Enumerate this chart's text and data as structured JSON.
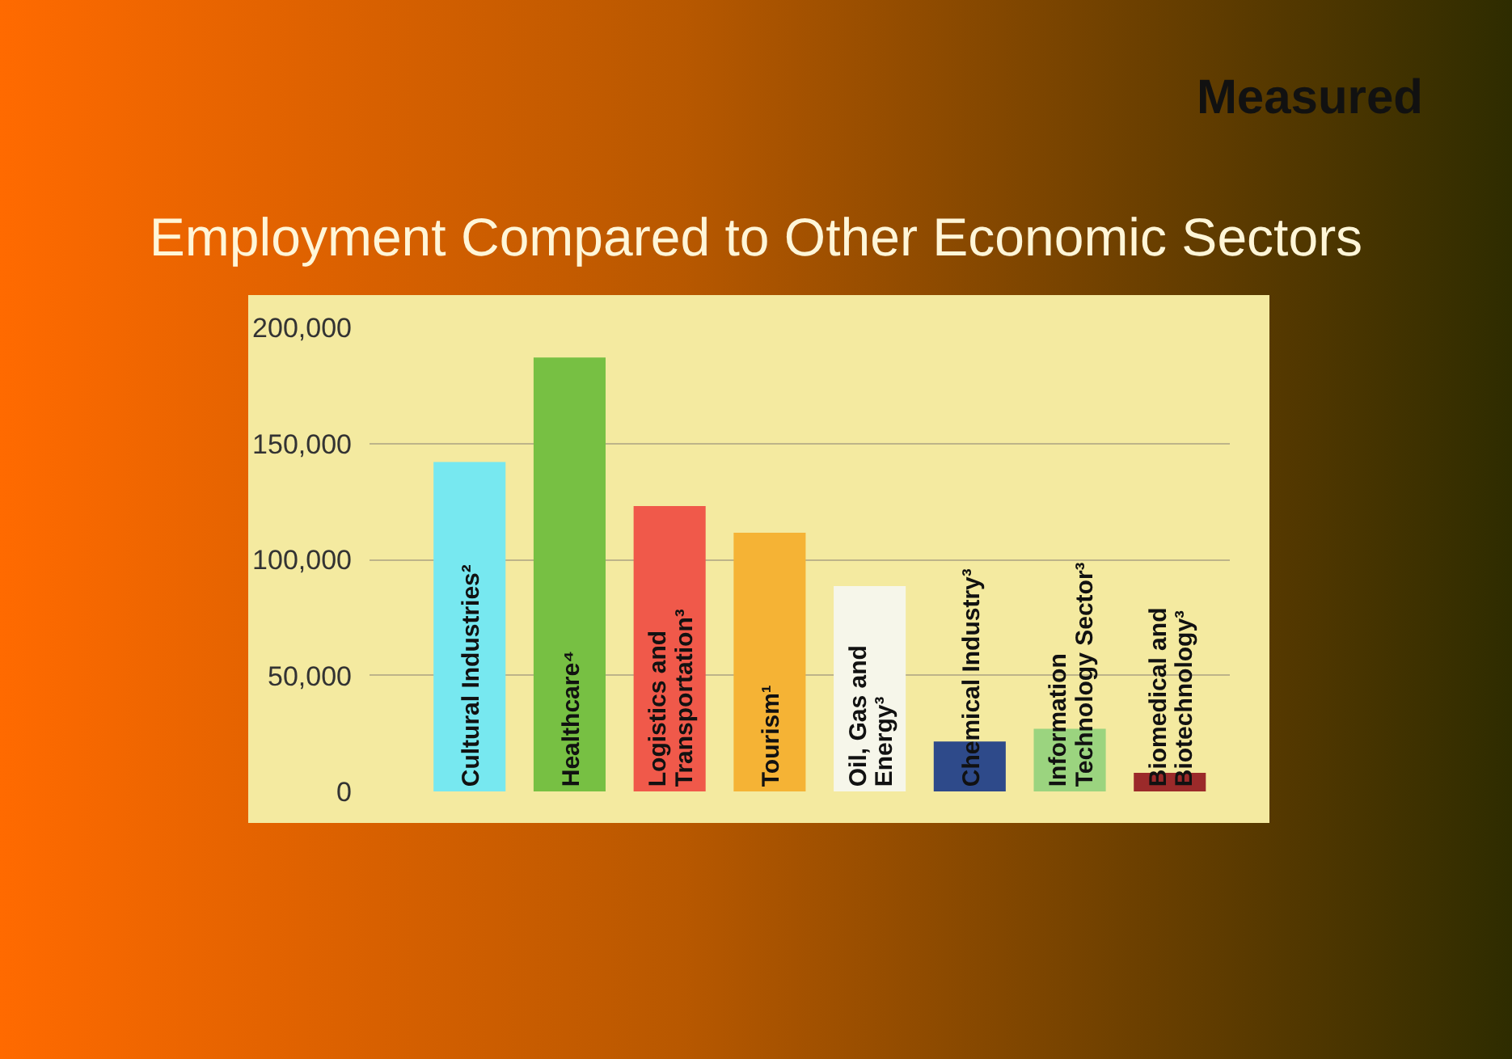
{
  "chart_data": {
    "type": "bar",
    "title": "Employment Compared to Other Economic Sectors",
    "subtitle": "Measured",
    "categories": [
      "Cultural Industries²",
      "Healthcare⁴",
      "Logistics and\nTransportation³",
      "Tourism¹",
      "Oil, Gas and\nEnergy³",
      "Chemical Industry³",
      "Information\nTechnology Sector³",
      "Biomedical and\nBiotechnology³"
    ],
    "values": [
      142000,
      187000,
      123000,
      111500,
      88500,
      21500,
      27000,
      8000
    ],
    "colors": [
      "#77e8f0",
      "#77c043",
      "#f0594a",
      "#f5b335",
      "#f6f6ea",
      "#2e4a8a",
      "#9bd47f",
      "#9b2a2a"
    ],
    "ylim": [
      0,
      200000
    ],
    "yticks": [
      0,
      {
        "value": 50000,
        "label": "50,000"
      },
      {
        "value": 100000,
        "label": "100,000"
      },
      {
        "value": 150000,
        "label": "150,000"
      },
      {
        "value": 200000,
        "label": "200,000"
      }
    ],
    "grid": "y"
  }
}
